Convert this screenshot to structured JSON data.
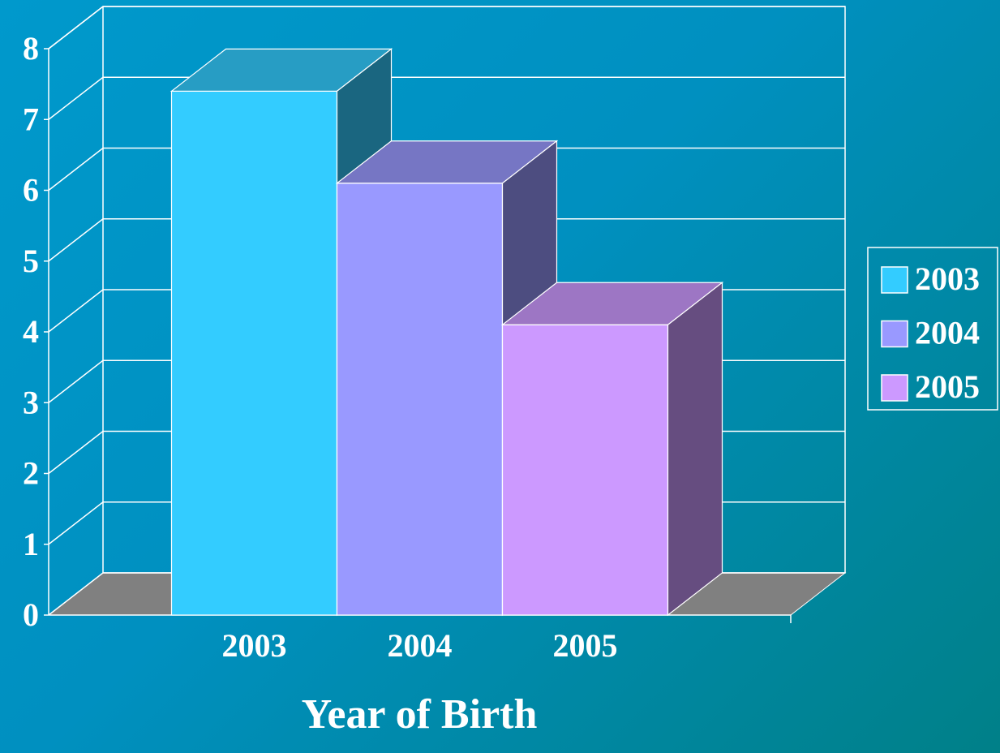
{
  "chart_data": {
    "type": "bar3d",
    "x_label": "Year of Birth",
    "categories": [
      "2003",
      "2004",
      "2005"
    ],
    "values": [
      7.4,
      6.1,
      4.1
    ],
    "colors": [
      "#33ccff",
      "#9999ff",
      "#cc99ff"
    ],
    "ylim": [
      0,
      8
    ],
    "yticks": [
      0,
      1,
      2,
      3,
      4,
      5,
      6,
      7,
      8
    ],
    "grid": true,
    "legend": "right"
  }
}
